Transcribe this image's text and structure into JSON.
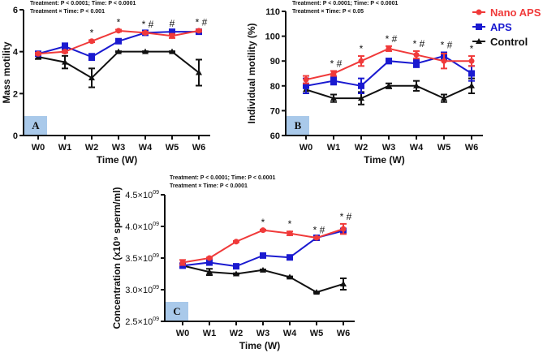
{
  "colors": {
    "nano": "#f03a3a",
    "aps": "#1a1ad0",
    "control": "#111111",
    "panel_box": "#a9c9ea"
  },
  "legend": [
    {
      "name": "Nano APS",
      "key": "nano",
      "marker": "circle"
    },
    {
      "name": "APS",
      "key": "aps",
      "marker": "square"
    },
    {
      "name": "Control",
      "key": "control",
      "marker": "triangle"
    }
  ],
  "chart_data": [
    {
      "panel": "A",
      "type": "line",
      "stats": [
        "Treatment: P < 0.0001; Time: P < 0.0001",
        "Treatment × Time: P < 0.001"
      ],
      "xlabel": "Time (W)",
      "ylabel": "Mass motility",
      "categories": [
        "W0",
        "W1",
        "W2",
        "W3",
        "W4",
        "W5",
        "W6"
      ],
      "ylim": [
        0,
        6
      ],
      "yticks": [
        0,
        2,
        4,
        6
      ],
      "ytick_labels": [
        {
          "mant": "0",
          "exp": ""
        },
        {
          "mant": "2",
          "exp": ""
        },
        {
          "mant": "4",
          "exp": ""
        },
        {
          "mant": "6",
          "exp": ""
        }
      ],
      "series": [
        {
          "key": "nano",
          "name": "Nano APS",
          "values": [
            3.9,
            4.0,
            4.5,
            5.0,
            4.9,
            4.75,
            5.0
          ],
          "errors": [
            0.05,
            0.05,
            0.05,
            0.05,
            0.05,
            0.1,
            0.05
          ]
        },
        {
          "key": "aps",
          "name": "APS",
          "values": [
            3.9,
            4.25,
            3.75,
            4.5,
            4.9,
            4.95,
            4.95
          ],
          "errors": [
            0.05,
            0.15,
            0.15,
            0.05,
            0.05,
            0.05,
            0.05
          ]
        },
        {
          "key": "control",
          "name": "Control",
          "values": [
            3.75,
            3.5,
            2.75,
            4.0,
            4.0,
            4.0,
            3.0
          ],
          "errors": [
            0.1,
            0.3,
            0.45,
            0.02,
            0.02,
            0.02,
            0.62
          ]
        }
      ],
      "annotations": [
        "",
        "",
        "*",
        "*",
        "* #",
        "#",
        "* #"
      ]
    },
    {
      "panel": "B",
      "type": "line",
      "stats": [
        "Treatment: P < 0.0001; Time: P < 0.0001",
        "Treatment × Time: P < 0.05"
      ],
      "xlabel": "Time (W)",
      "ylabel": "Individual motility (%)",
      "categories": [
        "W0",
        "W1",
        "W2",
        "W3",
        "W4",
        "W5",
        "W6"
      ],
      "ylim": [
        60,
        110
      ],
      "yticks": [
        60,
        70,
        80,
        90,
        100,
        110
      ],
      "ytick_labels": [
        {
          "mant": "60",
          "exp": ""
        },
        {
          "mant": "70",
          "exp": ""
        },
        {
          "mant": "80",
          "exp": ""
        },
        {
          "mant": "90",
          "exp": ""
        },
        {
          "mant": "100",
          "exp": ""
        },
        {
          "mant": "110",
          "exp": ""
        }
      ],
      "series": [
        {
          "key": "nano",
          "name": "Nano APS",
          "values": [
            82.5,
            85,
            90,
            95,
            92.5,
            90,
            90
          ],
          "errors": [
            1.5,
            1,
            2,
            1,
            1.5,
            3,
            2
          ]
        },
        {
          "key": "aps",
          "name": "APS",
          "values": [
            80,
            82,
            80,
            90,
            89,
            92,
            85
          ],
          "errors": [
            3,
            1.5,
            3,
            1,
            1.5,
            1.5,
            3
          ]
        },
        {
          "key": "control",
          "name": "Control",
          "values": [
            78.5,
            75,
            75,
            80,
            80,
            75,
            80
          ],
          "errors": [
            1.5,
            1.5,
            2.5,
            1,
            2,
            1.5,
            3
          ]
        }
      ],
      "annotations": [
        "",
        "* #",
        "*",
        "* #",
        "* #",
        "* #",
        "*"
      ]
    },
    {
      "panel": "C",
      "type": "line",
      "stats": [
        "Treatment: P < 0.0001; Time: P < 0.0001",
        "Treatment × Time: P < 0.0001"
      ],
      "xlabel": "Time (W)",
      "ylabel": "Concentration (x10⁹ sperm/ml)",
      "categories": [
        "W0",
        "W1",
        "W2",
        "W3",
        "W4",
        "W5",
        "W6"
      ],
      "ylim": [
        2.5,
        4.5
      ],
      "yticks": [
        2.5,
        3.0,
        3.5,
        4.0,
        4.5
      ],
      "ytick_labels": [
        {
          "mant": "2.5×10",
          "exp": "09"
        },
        {
          "mant": "3.0×10",
          "exp": "09"
        },
        {
          "mant": "3.5×10",
          "exp": "09"
        },
        {
          "mant": "4.0×10",
          "exp": "09"
        },
        {
          "mant": "4.5×10",
          "exp": "09"
        }
      ],
      "series": [
        {
          "key": "nano",
          "name": "Nano APS",
          "values": [
            3.43,
            3.5,
            3.76,
            3.94,
            3.89,
            3.82,
            3.96
          ],
          "errors": [
            0.04,
            0.01,
            0.01,
            0.01,
            0.03,
            0.01,
            0.08
          ]
        },
        {
          "key": "aps",
          "name": "APS",
          "values": [
            3.38,
            3.43,
            3.37,
            3.54,
            3.51,
            3.82,
            3.93
          ],
          "errors": [
            0.01,
            0.04,
            0.01,
            0.01,
            0.01,
            0.01,
            0.03
          ]
        },
        {
          "key": "control",
          "name": "Control",
          "values": [
            3.38,
            3.28,
            3.25,
            3.31,
            3.2,
            2.96,
            3.09
          ],
          "errors": [
            0.01,
            0.05,
            0.01,
            0.01,
            0.01,
            0.01,
            0.09
          ]
        }
      ],
      "annotations": [
        "",
        "",
        "",
        "*",
        "*",
        "* #",
        "* #"
      ]
    }
  ]
}
